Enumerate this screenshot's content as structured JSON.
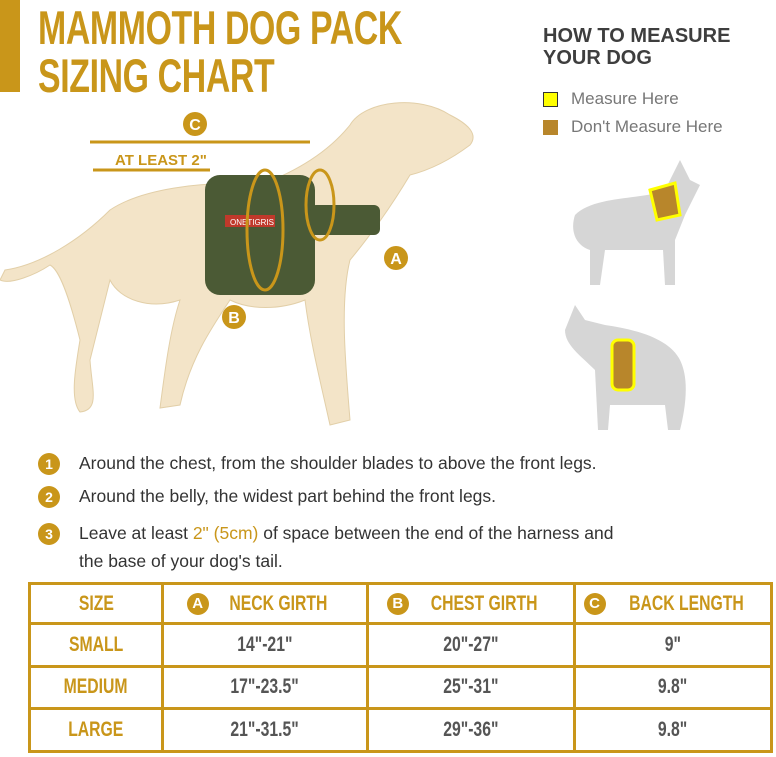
{
  "title": {
    "line1": "MAMMOTH DOG PACK",
    "line2": "SIZING CHART"
  },
  "how_to": {
    "heading_line1": "HOW TO MEASURE",
    "heading_line2": "YOUR DOG",
    "legend": [
      {
        "label": "Measure Here",
        "color": "#ffff00"
      },
      {
        "label": "Don't Measure Here",
        "color": "#b8862b"
      }
    ]
  },
  "diagram": {
    "label_c": "C",
    "label_a": "A",
    "label_b": "B",
    "at_least": "AT LEAST 2\"",
    "brand_tag": "ONETIGRIS"
  },
  "colors": {
    "accent": "#c9961a",
    "harness": "#4b5a35",
    "dog": "#f3e4c8",
    "silhouette": "#d6d6d6"
  },
  "instructions": [
    {
      "num": "1",
      "text": "Around the chest, from the shoulder blades to above the front legs."
    },
    {
      "num": "2",
      "text": "Around the belly, the widest part behind the front legs."
    },
    {
      "num": "3",
      "pre": "Leave at least ",
      "highlight": "2\" (5cm)",
      "post": " of space between the end of the harness and",
      "line2": "the base of your dog's tail."
    }
  ],
  "table": {
    "headers": [
      {
        "label": "SIZE"
      },
      {
        "badge": "A",
        "label": "NECK GIRTH"
      },
      {
        "badge": "B",
        "label": "CHEST GIRTH"
      },
      {
        "badge": "C",
        "label": "BACK LENGTH"
      }
    ],
    "rows": [
      [
        "SMALL",
        "14\"-21\"",
        "20\"-27\"",
        "9\""
      ],
      [
        "MEDIUM",
        "17\"-23.5\"",
        "25\"-31\"",
        "9.8\""
      ],
      [
        "LARGE",
        "21\"-31.5\"",
        "29\"-36\"",
        "9.8\""
      ]
    ]
  }
}
